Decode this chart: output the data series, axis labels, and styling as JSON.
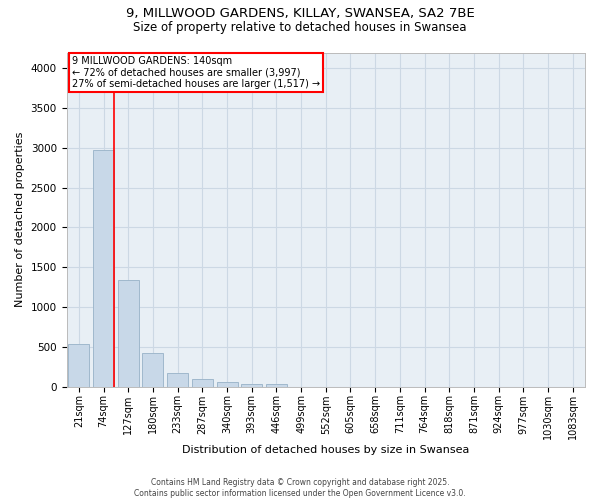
{
  "title_line1": "9, MILLWOOD GARDENS, KILLAY, SWANSEA, SA2 7BE",
  "title_line2": "Size of property relative to detached houses in Swansea",
  "xlabel": "Distribution of detached houses by size in Swansea",
  "ylabel": "Number of detached properties",
  "categories": [
    "21sqm",
    "74sqm",
    "127sqm",
    "180sqm",
    "233sqm",
    "287sqm",
    "340sqm",
    "393sqm",
    "446sqm",
    "499sqm",
    "552sqm",
    "605sqm",
    "658sqm",
    "711sqm",
    "764sqm",
    "818sqm",
    "871sqm",
    "924sqm",
    "977sqm",
    "1030sqm",
    "1083sqm"
  ],
  "values": [
    530,
    2980,
    1340,
    420,
    175,
    100,
    55,
    35,
    30,
    0,
    0,
    0,
    0,
    0,
    0,
    0,
    0,
    0,
    0,
    0,
    0
  ],
  "bar_color": "#c8d8e8",
  "bar_edge_color": "#a0b8cc",
  "grid_color": "#ccd8e4",
  "background_color": "#e8eff5",
  "annotation_text1": "9 MILLWOOD GARDENS: 140sqm",
  "annotation_text2": "← 72% of detached houses are smaller (3,997)",
  "annotation_text3": "27% of semi-detached houses are larger (1,517) →",
  "ylim": [
    0,
    4200
  ],
  "yticks": [
    0,
    500,
    1000,
    1500,
    2000,
    2500,
    3000,
    3500,
    4000
  ],
  "footer_line1": "Contains HM Land Registry data © Crown copyright and database right 2025.",
  "footer_line2": "Contains public sector information licensed under the Open Government Licence v3.0."
}
